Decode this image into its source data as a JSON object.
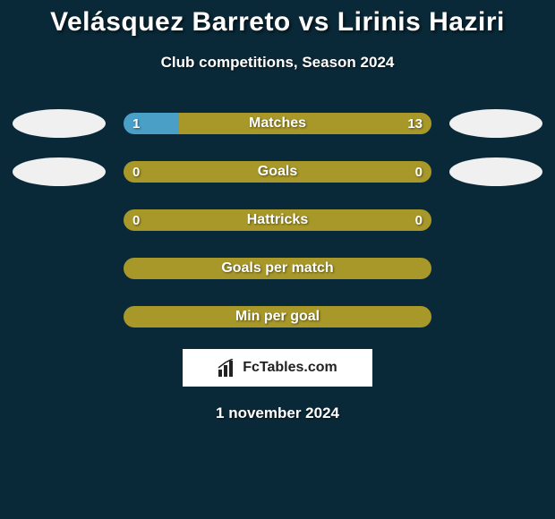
{
  "title": "Velásquez Barreto vs Lirinis Haziri",
  "subtitle": "Club competitions, Season 2024",
  "date": "1 november 2024",
  "watermark": "FcTables.com",
  "colors": {
    "background": "#0a2938",
    "bar_left": "#4a9fc7",
    "bar_right": "#a89829",
    "bar_right_alt": "#a89829",
    "avatar_bg": "#f0f0f0"
  },
  "rows": [
    {
      "label": "Matches",
      "left_val": "1",
      "right_val": "13",
      "left_pct": 18,
      "right_pct": 82,
      "has_avatars": true
    },
    {
      "label": "Goals",
      "left_val": "0",
      "right_val": "0",
      "left_pct": 0,
      "right_pct": 100,
      "has_avatars": true
    },
    {
      "label": "Hattricks",
      "left_val": "0",
      "right_val": "0",
      "left_pct": 0,
      "right_pct": 100,
      "has_avatars": false
    },
    {
      "label": "Goals per match",
      "left_val": "",
      "right_val": "",
      "left_pct": 0,
      "right_pct": 100,
      "has_avatars": false
    },
    {
      "label": "Min per goal",
      "left_val": "",
      "right_val": "",
      "left_pct": 0,
      "right_pct": 100,
      "has_avatars": false
    }
  ]
}
